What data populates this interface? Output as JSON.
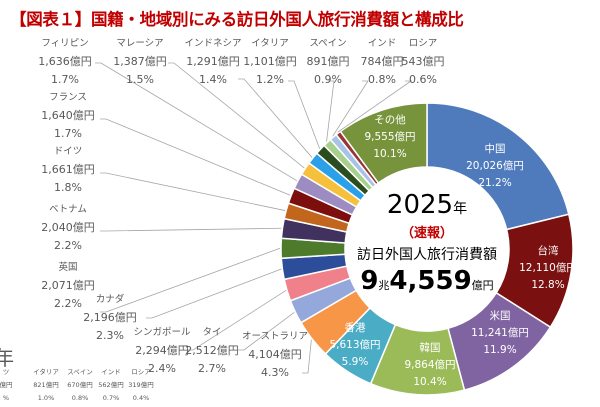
{
  "title": "【図表１】国籍・地域別にみる訪日外国人旅行消費額と構成比",
  "center": {
    "year": "2025",
    "year_unit": "年",
    "note": "（速報）",
    "label": "訪日外国人旅行消費額",
    "total_cho": "9",
    "cho_unit": "兆",
    "total_oku": "4,559",
    "oku_unit": "億円"
  },
  "chart_data": {
    "type": "pie",
    "style": "donut",
    "title": "国籍・地域別にみる訪日外国人旅行消費額と構成比",
    "unit": "億円",
    "total": 94559,
    "slices": [
      {
        "name": "中国",
        "value": 20026,
        "value_label": "20,026億円",
        "pct": "21.2%",
        "color": "#4f7bbd"
      },
      {
        "name": "台湾",
        "value": 12110,
        "value_label": "12,110億円",
        "pct": "12.8%",
        "color": "#7a1010"
      },
      {
        "name": "米国",
        "value": 11241,
        "value_label": "11,241億円",
        "pct": "11.9%",
        "color": "#8064a2"
      },
      {
        "name": "韓国",
        "value": 9864,
        "value_label": "9,864億円",
        "pct": "10.4%",
        "color": "#9bbb59"
      },
      {
        "name": "香港",
        "value": 5613,
        "value_label": "5,613億円",
        "pct": "5.9%",
        "color": "#4bacc6"
      },
      {
        "name": "オーストラリア",
        "value": 4104,
        "value_label": "4,104億円",
        "pct": "4.3%",
        "color": "#f79646"
      },
      {
        "name": "タイ",
        "value": 2512,
        "value_label": "2,512億円",
        "pct": "2.7%",
        "color": "#95a8dc"
      },
      {
        "name": "シンガポール",
        "value": 2294,
        "value_label": "2,294億円",
        "pct": "2.4%",
        "color": "#f0818a"
      },
      {
        "name": "カナダ",
        "value": 2196,
        "value_label": "2,196億円",
        "pct": "2.3%",
        "color": "#2c4d9a"
      },
      {
        "name": "英国",
        "value": 2071,
        "value_label": "2,071億円",
        "pct": "2.2%",
        "color": "#4e7a2c"
      },
      {
        "name": "ベトナム",
        "value": 2040,
        "value_label": "2,040億円",
        "pct": "2.2%",
        "color": "#40315f"
      },
      {
        "name": "ドイツ",
        "value": 1661,
        "value_label": "1,661億円",
        "pct": "1.8%",
        "color": "#c2651d"
      },
      {
        "name": "フランス",
        "value": 1640,
        "value_label": "1,640億円",
        "pct": "1.7%",
        "color": "#7c0e0e"
      },
      {
        "name": "フィリピン",
        "value": 1636,
        "value_label": "1,636億円",
        "pct": "1.7%",
        "color": "#9d8cc2"
      },
      {
        "name": "マレーシア",
        "value": 1387,
        "value_label": "1,387億円",
        "pct": "1.5%",
        "color": "#f5c13c"
      },
      {
        "name": "インドネシア",
        "value": 1291,
        "value_label": "1,291億円",
        "pct": "1.4%",
        "color": "#2aa0e8"
      },
      {
        "name": "イタリア",
        "value": 1101,
        "value_label": "1,101億円",
        "pct": "1.2%",
        "color": "#2b4c1e"
      },
      {
        "name": "スペイン",
        "value": 891,
        "value_label": "891億円",
        "pct": "0.9%",
        "color": "#a8d08d"
      },
      {
        "name": "インド",
        "value": 784,
        "value_label": "784億円",
        "pct": "0.8%",
        "color": "#a7c4e8"
      },
      {
        "name": "ロシア",
        "value": 543,
        "value_label": "543億円",
        "pct": "0.6%",
        "color": "#953735"
      },
      {
        "name": "その他",
        "value": 9555,
        "value_label": "9,555億円",
        "pct": "10.1%",
        "color": "#77933c"
      }
    ]
  },
  "previous_chart_fragment": {
    "year_unit": "年",
    "labels": [
      {
        "name": "ツ",
        "value_label": "億円",
        "pct": "%"
      },
      {
        "name": "イタリア",
        "value_label": "821億円",
        "pct": "1.0%"
      },
      {
        "name": "スペイン",
        "value_label": "670億円",
        "pct": "0.8%"
      },
      {
        "name": "インド",
        "value_label": "562億円",
        "pct": "0.7%"
      },
      {
        "name": "ロシア",
        "value_label": "319億円",
        "pct": "0.4%"
      }
    ]
  }
}
